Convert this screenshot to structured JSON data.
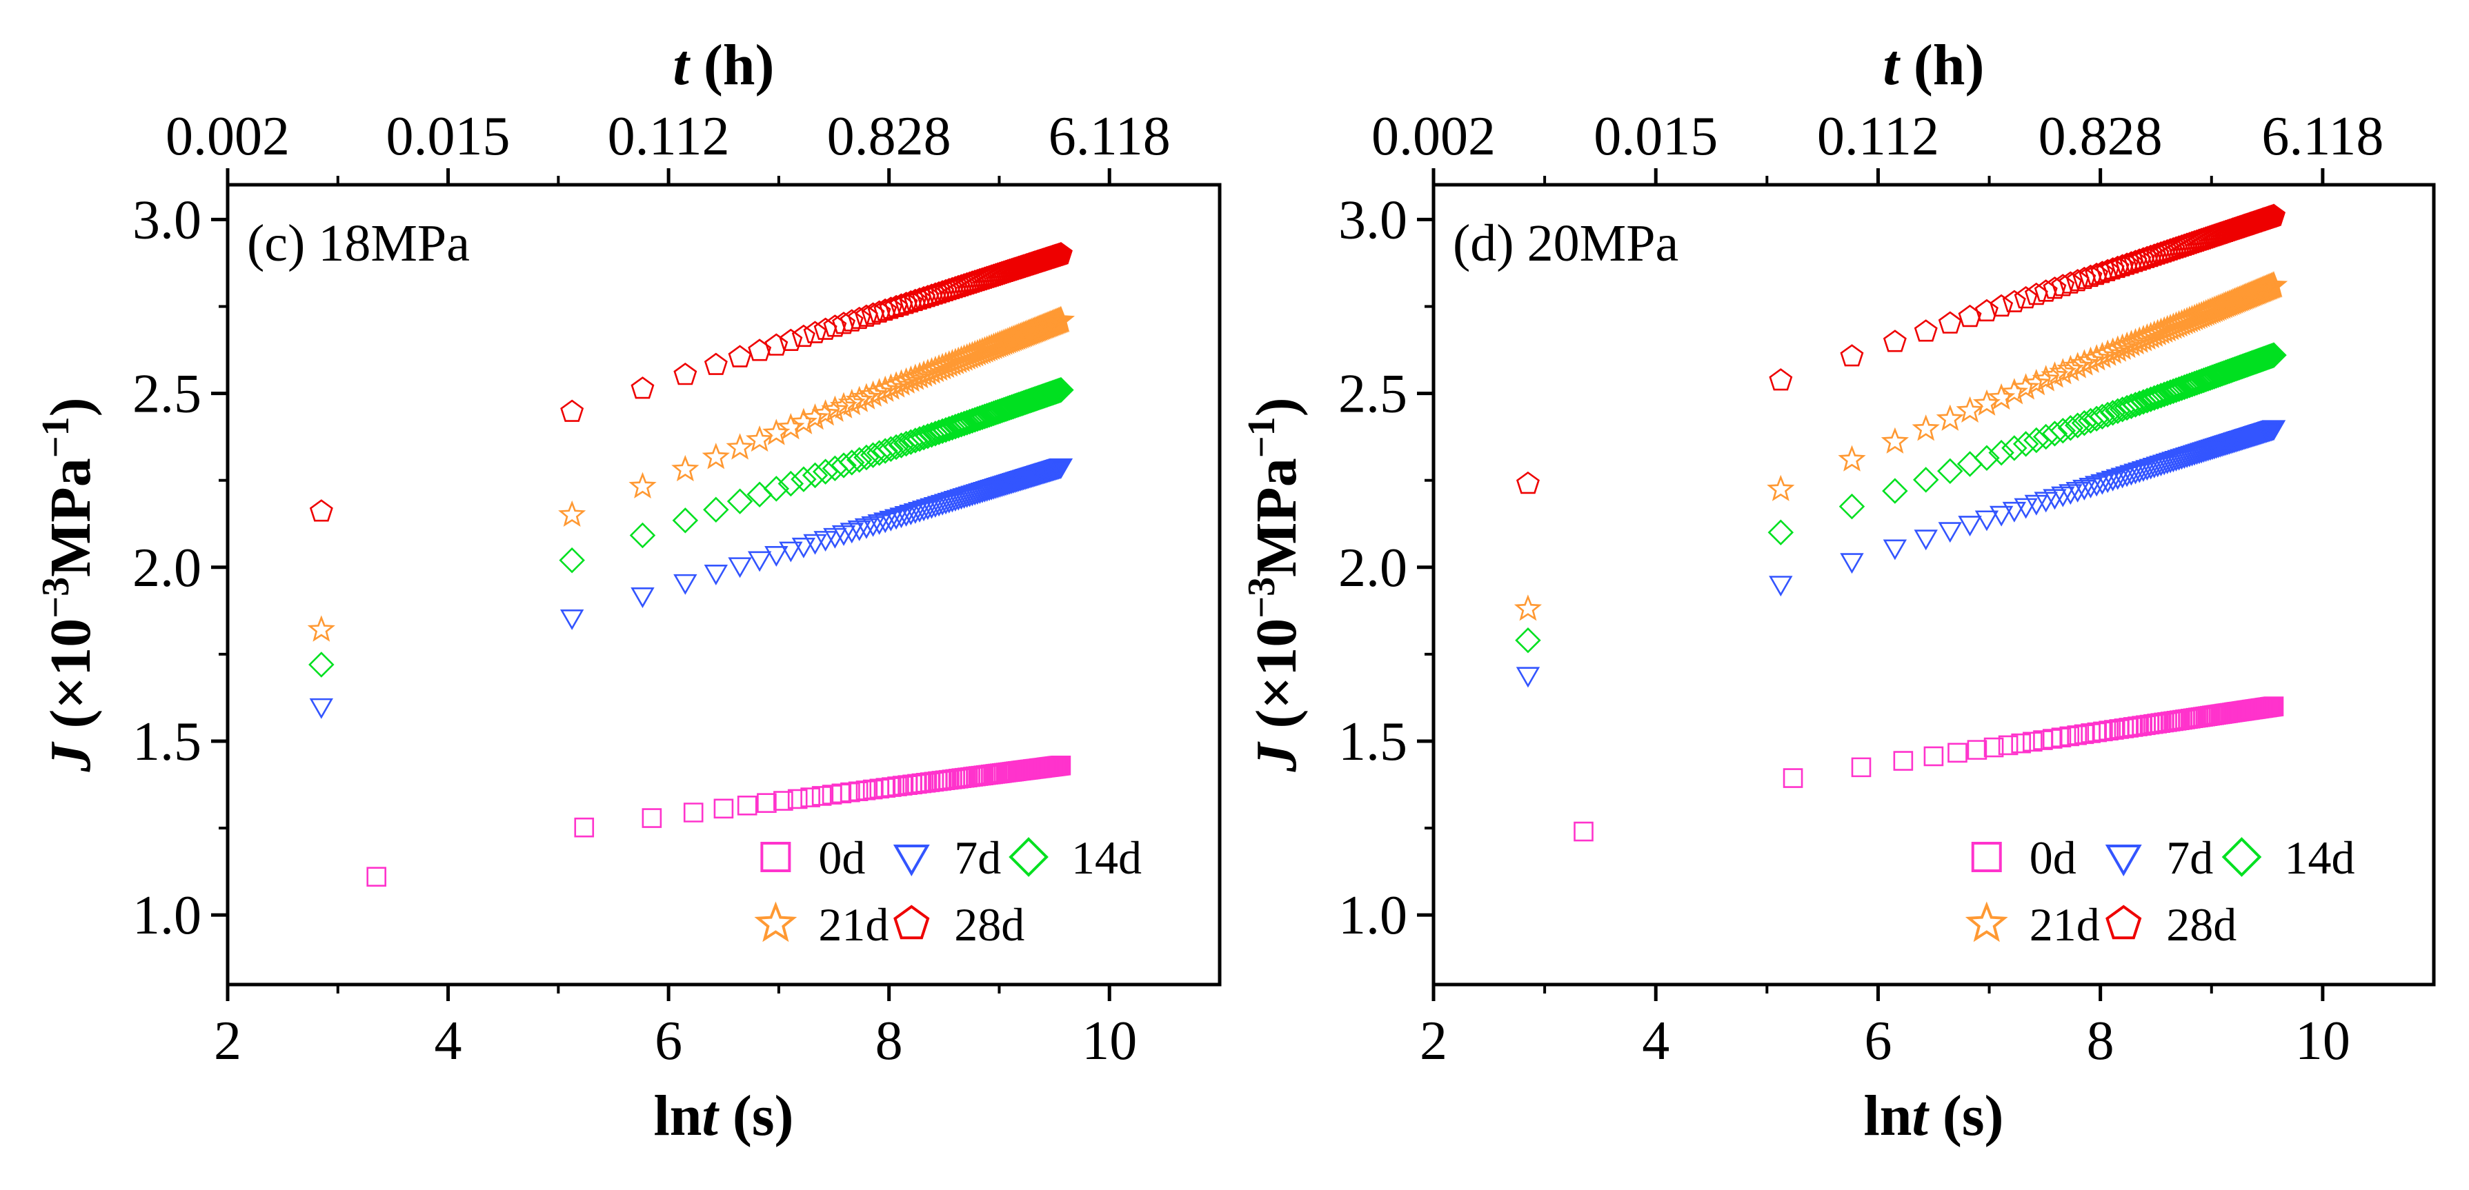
{
  "chart_data": [
    {
      "type": "scatter",
      "panel_label": "(c) 18MPa",
      "xlabel": {
        "pre": "ln",
        "ital": "t",
        "post": " (s)"
      },
      "top_xlabel": {
        "ital": "t",
        "post": " (h)"
      },
      "ylabel": {
        "ital": "J",
        "pre": " (×10",
        "sup": "−3",
        "mid": "MPa",
        "sup2": "−1",
        "post": ")"
      },
      "xlim": [
        2,
        11
      ],
      "ylim": [
        0.8,
        3.1
      ],
      "xticks": [
        2,
        4,
        6,
        8,
        10
      ],
      "xtick_labels": [
        "2",
        "4",
        "6",
        "8",
        "10"
      ],
      "yticks": [
        1.0,
        1.5,
        2.0,
        2.5,
        3.0
      ],
      "ytick_labels": [
        "1.0",
        "1.5",
        "2.0",
        "2.5",
        "3.0"
      ],
      "top_ticks": [
        2.0,
        4.0,
        6.0,
        8.0,
        10.0
      ],
      "top_tick_labels": [
        "0.002",
        "0.015",
        "0.112",
        "0.828",
        "6.118"
      ],
      "legend_position": "bottom-right",
      "series": [
        {
          "name": "0d",
          "marker": "square",
          "color": "#ff33cc",
          "x_start": 3.35,
          "x_end": 9.56,
          "y_start": 1.11,
          "y_end": 1.43,
          "curve": 0.12,
          "points": 90
        },
        {
          "name": "7d",
          "marker": "triangle-down",
          "color": "#3355ff",
          "x_start": 2.85,
          "x_end": 9.56,
          "y_start": 1.6,
          "y_end": 2.29,
          "curve": 0.06,
          "points": 95
        },
        {
          "name": "14d",
          "marker": "diamond",
          "color": "#00e020",
          "x_start": 2.85,
          "x_end": 9.56,
          "y_start": 1.72,
          "y_end": 2.51,
          "curve": 0.09,
          "points": 95
        },
        {
          "name": "21d",
          "marker": "star",
          "color": "#ff9933",
          "x_start": 2.85,
          "x_end": 9.56,
          "y_start": 1.82,
          "y_end": 2.71,
          "curve": 0.08,
          "points": 95
        },
        {
          "name": "28d",
          "marker": "pentagon",
          "color": "#ee0000",
          "x_start": 2.85,
          "x_end": 9.56,
          "y_start": 2.16,
          "y_end": 2.9,
          "curve": 0.1,
          "points": 95
        }
      ]
    },
    {
      "type": "scatter",
      "panel_label": "(d) 20MPa",
      "xlabel": {
        "pre": "ln",
        "ital": "t",
        "post": " (s)"
      },
      "top_xlabel": {
        "ital": "t",
        "post": " (h)"
      },
      "ylabel": {
        "ital": "J",
        "pre": " (×10",
        "sup": "−3",
        "mid": "MPa",
        "sup2": "−1",
        "post": ")"
      },
      "xlim": [
        2,
        11
      ],
      "ylim": [
        0.8,
        3.1
      ],
      "xticks": [
        2,
        4,
        6,
        8,
        10
      ],
      "xtick_labels": [
        "2",
        "4",
        "6",
        "8",
        "10"
      ],
      "yticks": [
        1.0,
        1.5,
        2.0,
        2.5,
        3.0
      ],
      "ytick_labels": [
        "1.0",
        "1.5",
        "2.0",
        "2.5",
        "3.0"
      ],
      "top_ticks": [
        2.0,
        4.0,
        6.0,
        8.0,
        10.0
      ],
      "top_tick_labels": [
        "0.002",
        "0.015",
        "0.112",
        "0.828",
        "6.118"
      ],
      "legend_position": "bottom-right",
      "series": [
        {
          "name": "0d",
          "marker": "square",
          "color": "#ff33cc",
          "x_start": 3.35,
          "x_end": 9.56,
          "y_start": 1.24,
          "y_end": 1.6,
          "curve": 0.12,
          "points": 90
        },
        {
          "name": "7d",
          "marker": "triangle-down",
          "color": "#3355ff",
          "x_start": 2.85,
          "x_end": 9.56,
          "y_start": 1.69,
          "y_end": 2.4,
          "curve": 0.06,
          "points": 95
        },
        {
          "name": "14d",
          "marker": "diamond",
          "color": "#00e020",
          "x_start": 2.85,
          "x_end": 9.56,
          "y_start": 1.79,
          "y_end": 2.61,
          "curve": 0.09,
          "points": 95
        },
        {
          "name": "21d",
          "marker": "star",
          "color": "#ff9933",
          "x_start": 2.85,
          "x_end": 9.56,
          "y_start": 1.88,
          "y_end": 2.81,
          "curve": 0.08,
          "points": 95
        },
        {
          "name": "28d",
          "marker": "pentagon",
          "color": "#ee0000",
          "x_start": 2.85,
          "x_end": 9.56,
          "y_start": 2.24,
          "y_end": 3.01,
          "curve": 0.1,
          "points": 95
        }
      ]
    }
  ]
}
